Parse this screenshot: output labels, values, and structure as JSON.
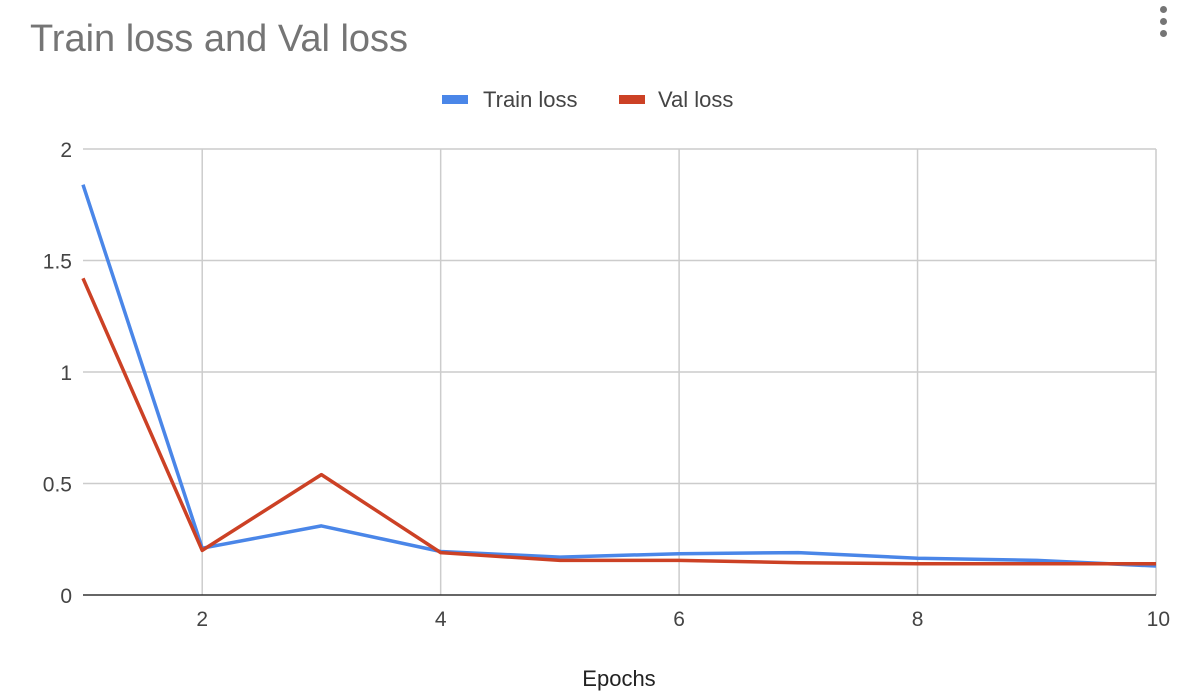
{
  "more_menu_icon": "more-vert-icon",
  "chart_data": {
    "type": "line",
    "title": "Train loss and Val loss",
    "xlabel": "Epochs",
    "ylabel": "",
    "xlim": [
      1,
      10
    ],
    "ylim": [
      0,
      2
    ],
    "x_ticks": [
      2,
      4,
      6,
      8,
      10
    ],
    "y_ticks": [
      0,
      0.5,
      1,
      1.5,
      2
    ],
    "y_tick_labels": [
      "0",
      "0.5",
      "1",
      "1.5",
      "2"
    ],
    "grid": true,
    "legend_position": "top",
    "x": [
      1,
      2,
      3,
      4,
      5,
      6,
      7,
      8,
      9,
      10
    ],
    "series": [
      {
        "name": "Train loss",
        "color": "#4a86e8",
        "values": [
          1.84,
          0.21,
          0.31,
          0.195,
          0.17,
          0.185,
          0.19,
          0.165,
          0.155,
          0.13
        ]
      },
      {
        "name": "Val loss",
        "color": "#cc4125",
        "values": [
          1.42,
          0.2,
          0.54,
          0.19,
          0.155,
          0.155,
          0.145,
          0.14,
          0.14,
          0.14
        ]
      }
    ]
  }
}
